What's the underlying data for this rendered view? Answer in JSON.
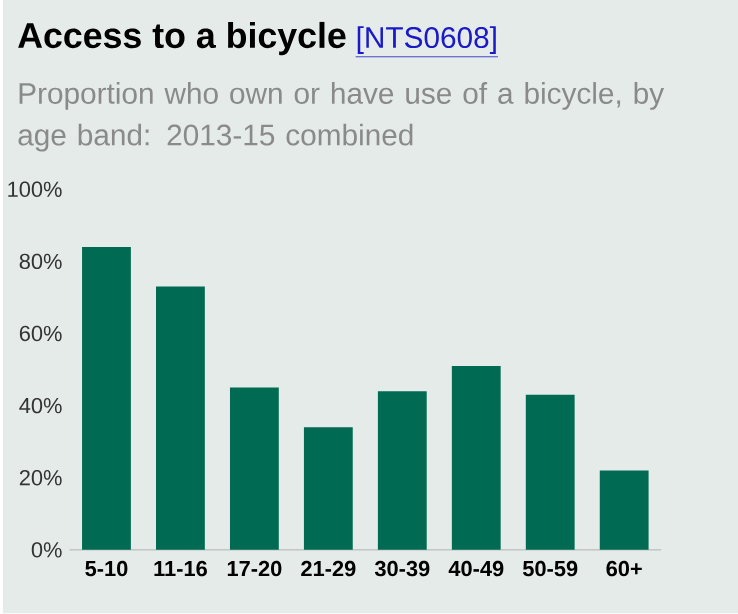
{
  "chart_data": {
    "type": "bar",
    "title": "Access to a bicycle",
    "annotations": [
      "[NTS0608]"
    ],
    "subtitle": "Proportion who own or have use of a bicycle, by age band: 2013-15 combined",
    "categories": [
      "5-10",
      "11-16",
      "17-20",
      "21-29",
      "30-39",
      "40-49",
      "50-59",
      "60+"
    ],
    "values": [
      84,
      73,
      45,
      34,
      44,
      51,
      43,
      22
    ],
    "color": "#006a52",
    "ylim": [
      0,
      100
    ],
    "yticks": [
      {
        "value": 0,
        "label": "0%"
      },
      {
        "value": 20,
        "label": "20%"
      },
      {
        "value": 40,
        "label": "40%"
      },
      {
        "value": 60,
        "label": "60%"
      },
      {
        "value": 80,
        "label": "80%"
      },
      {
        "value": 100,
        "label": "100%"
      }
    ],
    "grid": false
  }
}
